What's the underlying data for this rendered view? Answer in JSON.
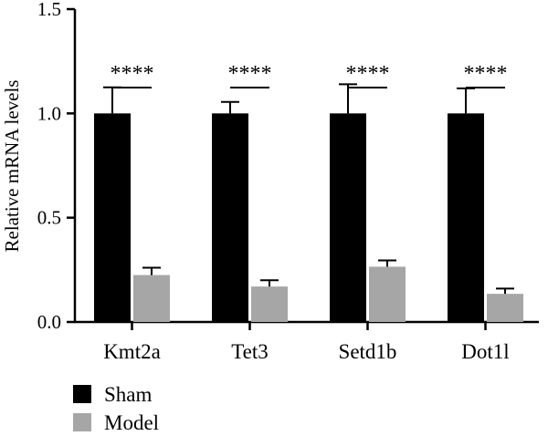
{
  "chart_data": {
    "type": "bar",
    "title": "",
    "xlabel": "",
    "ylabel": "Relative mRNA levels",
    "ylim": [
      0,
      1.5
    ],
    "yticks": [
      "0.0",
      "0.5",
      "1.0",
      "1.5"
    ],
    "categories": [
      "Kmt2a",
      "Tet3",
      "Setd1b",
      "Dot1l"
    ],
    "series": [
      {
        "name": "Sham",
        "color": "#000000",
        "values": [
          1.0,
          1.0,
          1.0,
          1.0
        ],
        "errors": [
          0.125,
          0.055,
          0.14,
          0.12
        ]
      },
      {
        "name": "Model",
        "color": "#a6a6a6",
        "values": [
          0.225,
          0.17,
          0.265,
          0.135
        ],
        "errors": [
          0.035,
          0.03,
          0.03,
          0.025
        ]
      }
    ],
    "significance": [
      "****",
      "****",
      "****",
      "****"
    ],
    "grid": false,
    "legend_position": "bottom-left"
  }
}
